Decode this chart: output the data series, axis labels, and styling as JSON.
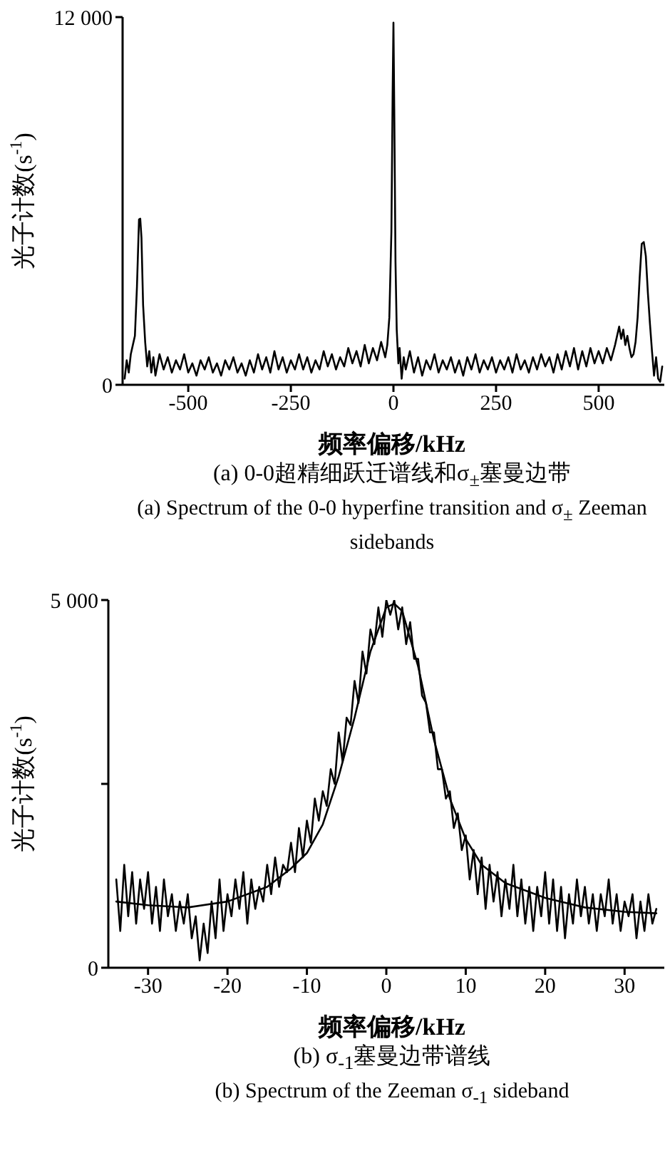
{
  "chart_data": [
    {
      "type": "line",
      "xlabel": "频率偏移/kHz",
      "ylabel": "光子计数(s$^{-1}$)",
      "annotations": [
        "(a) 0-0超精细跃迁谱线和σ$_{±}$塞曼边带",
        "(a) Spectrum of the 0-0 hyperfine transition and σ$_{±}$ Zeeman sidebands"
      ],
      "xlim": [
        -660,
        660
      ],
      "xticks": [
        -500,
        -250,
        0,
        250,
        500
      ],
      "ylim": [
        0,
        12000
      ],
      "yticks": [
        0,
        {
          "value": 12000,
          "label": "12 000"
        }
      ],
      "marker": "none",
      "line_style": "solid",
      "series": [
        {
          "color": "#000000",
          "x": [
            -655,
            -650,
            -645,
            -640,
            -635,
            -630,
            -625,
            -620,
            -617,
            -614,
            -610,
            -605,
            -600,
            -595,
            -590,
            -585,
            -580,
            -570,
            -560,
            -550,
            -540,
            -530,
            -520,
            -510,
            -500,
            -490,
            -480,
            -470,
            -460,
            -450,
            -440,
            -430,
            -420,
            -410,
            -400,
            -390,
            -380,
            -370,
            -360,
            -350,
            -340,
            -330,
            -320,
            -310,
            -300,
            -290,
            -280,
            -270,
            -260,
            -250,
            -240,
            -230,
            -220,
            -210,
            -200,
            -190,
            -180,
            -170,
            -160,
            -150,
            -140,
            -130,
            -120,
            -110,
            -100,
            -90,
            -80,
            -70,
            -60,
            -50,
            -40,
            -30,
            -20,
            -15,
            -10,
            -5,
            -2,
            0,
            2,
            5,
            8,
            12,
            15,
            20,
            25,
            30,
            40,
            50,
            60,
            70,
            80,
            90,
            100,
            110,
            120,
            130,
            140,
            150,
            160,
            170,
            180,
            190,
            200,
            210,
            220,
            230,
            240,
            250,
            260,
            270,
            280,
            290,
            300,
            310,
            320,
            330,
            340,
            350,
            360,
            370,
            380,
            390,
            400,
            410,
            420,
            430,
            440,
            450,
            460,
            470,
            480,
            490,
            500,
            510,
            520,
            530,
            540,
            550,
            555,
            560,
            565,
            570,
            575,
            580,
            585,
            590,
            595,
            600,
            605,
            610,
            615,
            620,
            625,
            630,
            635,
            640,
            645,
            650,
            655
          ],
          "values": [
            200,
            800,
            400,
            1000,
            1300,
            1600,
            3200,
            5400,
            5420,
            4800,
            2600,
            1400,
            600,
            1100,
            400,
            900,
            300,
            1000,
            500,
            900,
            400,
            800,
            500,
            1000,
            400,
            700,
            300,
            800,
            500,
            900,
            400,
            700,
            300,
            800,
            500,
            900,
            400,
            700,
            300,
            800,
            400,
            1000,
            500,
            900,
            400,
            1100,
            500,
            900,
            400,
            800,
            500,
            1000,
            500,
            900,
            400,
            800,
            500,
            1100,
            600,
            1000,
            500,
            900,
            600,
            1200,
            700,
            1100,
            600,
            1300,
            700,
            1200,
            800,
            1400,
            900,
            1300,
            2200,
            5000,
            9500,
            11820,
            9000,
            4000,
            1800,
            700,
            1200,
            200,
            900,
            500,
            1100,
            400,
            900,
            300,
            800,
            500,
            1000,
            400,
            800,
            500,
            900,
            400,
            800,
            300,
            900,
            500,
            1000,
            400,
            800,
            500,
            900,
            400,
            800,
            500,
            900,
            400,
            1000,
            500,
            800,
            400,
            900,
            500,
            1000,
            600,
            900,
            400,
            1000,
            500,
            1100,
            600,
            1200,
            500,
            1100,
            600,
            1200,
            700,
            1100,
            700,
            1200,
            800,
            1300,
            1900,
            1500,
            1800,
            1300,
            1600,
            1200,
            900,
            1000,
            1400,
            2200,
            3500,
            4600,
            4660,
            4200,
            3000,
            2000,
            1100,
            300,
            900,
            200,
            100,
            600
          ]
        }
      ]
    },
    {
      "type": "line",
      "xlabel": "频率偏移/kHz",
      "ylabel": "光子计数(s$^{-1}$)",
      "annotations": [
        "(b) σ$_{-1}$塞曼边带谱线",
        "(b) Spectrum of the Zeeman σ$_{-1}$ sideband"
      ],
      "xlim": [
        -35,
        35
      ],
      "xticks": [
        -30,
        -20,
        -10,
        0,
        10,
        20,
        30
      ],
      "ylim": [
        0,
        5000
      ],
      "yticks": [
        0,
        {
          "value": 2500,
          "label": null
        },
        {
          "value": 5000,
          "label": "5 000"
        }
      ],
      "marker": "none",
      "line_style": "solid",
      "series": [
        {
          "color": "#000000",
          "x": [
            -34,
            -33.5,
            -33,
            -32.5,
            -32,
            -31.5,
            -31,
            -30.5,
            -30,
            -29.5,
            -29,
            -28.5,
            -28,
            -27.5,
            -27,
            -26.5,
            -26,
            -25.5,
            -25,
            -24.5,
            -24,
            -23.5,
            -23,
            -22.5,
            -22,
            -21.5,
            -21,
            -20.5,
            -20,
            -19.5,
            -19,
            -18.5,
            -18,
            -17.5,
            -17,
            -16.5,
            -16,
            -15.5,
            -15,
            -14.5,
            -14,
            -13.5,
            -13,
            -12.5,
            -12,
            -11.5,
            -11,
            -10.5,
            -10,
            -9.5,
            -9,
            -8.5,
            -8,
            -7.5,
            -7,
            -6.5,
            -6,
            -5.5,
            -5,
            -4.5,
            -4,
            -3.5,
            -3,
            -2.5,
            -2,
            -1.5,
            -1,
            -0.5,
            0,
            0.5,
            1,
            1.5,
            2,
            2.5,
            3,
            3.5,
            4,
            4.5,
            5,
            5.5,
            6,
            6.5,
            7,
            7.5,
            8,
            8.5,
            9,
            9.5,
            10,
            10.5,
            11,
            11.5,
            12,
            12.5,
            13,
            13.5,
            14,
            14.5,
            15,
            15.5,
            16,
            16.5,
            17,
            17.5,
            18,
            18.5,
            19,
            19.5,
            20,
            20.5,
            21,
            21.5,
            22,
            22.5,
            23,
            23.5,
            24,
            24.5,
            25,
            25.5,
            26,
            26.5,
            27,
            27.5,
            28,
            28.5,
            29,
            29.5,
            30,
            30.5,
            31,
            31.5,
            32,
            32.5,
            33,
            33.5,
            34
          ],
          "values": [
            1200,
            500,
            1400,
            700,
            1300,
            600,
            1200,
            800,
            1300,
            600,
            1100,
            500,
            1200,
            700,
            1000,
            500,
            900,
            600,
            1000,
            400,
            700,
            100,
            600,
            200,
            900,
            400,
            1200,
            500,
            1000,
            700,
            1200,
            800,
            1300,
            600,
            1200,
            800,
            1100,
            900,
            1400,
            1000,
            1500,
            1100,
            1400,
            1300,
            1700,
            1300,
            1900,
            1500,
            2000,
            1700,
            2300,
            2000,
            2400,
            2200,
            2700,
            2500,
            3200,
            2800,
            3400,
            3300,
            3900,
            3600,
            4300,
            4000,
            4600,
            4400,
            4900,
            4500,
            5000,
            4800,
            5000,
            4600,
            4900,
            4400,
            4700,
            4200,
            4200,
            3700,
            3600,
            3200,
            3200,
            2700,
            2700,
            2300,
            2400,
            1900,
            2100,
            1600,
            1800,
            1200,
            1600,
            1000,
            1500,
            800,
            1400,
            900,
            1300,
            700,
            1200,
            800,
            1400,
            700,
            1200,
            600,
            1100,
            500,
            1100,
            700,
            1300,
            600,
            1200,
            500,
            1100,
            400,
            1000,
            600,
            1200,
            700,
            1100,
            600,
            1000,
            500,
            1000,
            700,
            1200,
            600,
            1000,
            500,
            900,
            700,
            1000,
            400,
            900,
            500,
            1000,
            600,
            800
          ]
        },
        {
          "color": "#000000",
          "x": [
            -34,
            -30,
            -25,
            -20,
            -15,
            -12,
            -10,
            -8,
            -6,
            -4,
            -2,
            0,
            1,
            2,
            4,
            6,
            8,
            10,
            12,
            15,
            20,
            25,
            30,
            34
          ],
          "values": [
            900,
            850,
            820,
            900,
            1100,
            1350,
            1560,
            1950,
            2600,
            3400,
            4300,
            4900,
            4950,
            4850,
            4100,
            3100,
            2300,
            1750,
            1400,
            1150,
            950,
            820,
            760,
            740
          ]
        }
      ]
    }
  ]
}
